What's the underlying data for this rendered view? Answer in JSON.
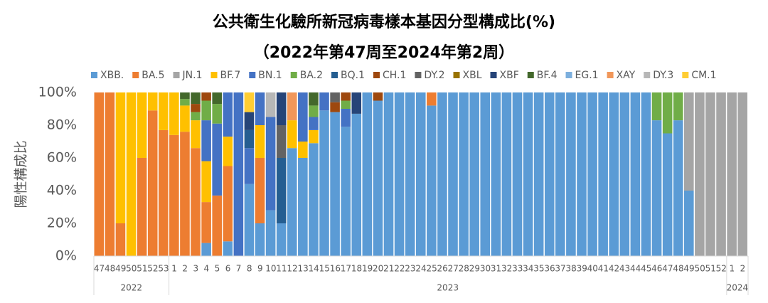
{
  "chart_data": {
    "type": "stacked_bar",
    "title": "公共衛生化驗所新冠病毒樣本基因分型構成比(%)",
    "subtitle": "（2022年第47周至2024年第2周）",
    "y_label": "陽性構成比",
    "ylim": [
      0,
      100
    ],
    "yticks": [
      {
        "value": 0,
        "label": "0%"
      },
      {
        "value": 20,
        "label": "20%"
      },
      {
        "value": 40,
        "label": "40%"
      },
      {
        "value": 60,
        "label": "60%"
      },
      {
        "value": 80,
        "label": "80%"
      },
      {
        "value": 100,
        "label": "100%"
      }
    ],
    "legend": "top",
    "categories": [
      "47",
      "48",
      "49",
      "50",
      "51",
      "52",
      "53",
      "1",
      "2",
      "3",
      "4",
      "5",
      "6",
      "7",
      "8",
      "9",
      "10",
      "11",
      "12",
      "13",
      "14",
      "15",
      "16",
      "17",
      "18",
      "19",
      "20",
      "21",
      "22",
      "23",
      "24",
      "25",
      "26",
      "27",
      "28",
      "29",
      "30",
      "31",
      "32",
      "33",
      "34",
      "35",
      "36",
      "37",
      "38",
      "39",
      "40",
      "41",
      "42",
      "43",
      "44",
      "45",
      "46",
      "47",
      "48",
      "49",
      "50",
      "51",
      "52",
      "1",
      "2"
    ],
    "x_groups": [
      {
        "label": "2022",
        "categories": 7
      },
      {
        "label": "2023",
        "categories": 52
      },
      {
        "label": "2024",
        "categories": 2
      }
    ],
    "series": [
      {
        "name": "XBB.",
        "color": "#5b9bd5",
        "values": [
          0,
          0,
          0,
          0,
          0,
          0,
          0,
          0,
          0,
          0,
          8,
          0,
          9,
          0,
          44,
          20,
          28,
          20,
          66,
          60,
          69,
          89,
          88,
          79,
          87,
          100,
          95,
          100,
          100,
          100,
          100,
          92,
          100,
          100,
          100,
          100,
          100,
          100,
          100,
          100,
          100,
          100,
          100,
          100,
          100,
          100,
          100,
          100,
          100,
          100,
          100,
          100,
          83,
          75,
          83,
          40,
          0,
          0,
          0,
          0,
          0
        ]
      },
      {
        "name": "BA.5",
        "color": "#ed7d31",
        "values": [
          100,
          100,
          20,
          0,
          60,
          89,
          77,
          74,
          76,
          66,
          25,
          37,
          46,
          0,
          0,
          40,
          0,
          0,
          0,
          0,
          0,
          0,
          0,
          0,
          0,
          0,
          0,
          0,
          0,
          0,
          0,
          8,
          0,
          0,
          0,
          0,
          0,
          0,
          0,
          0,
          0,
          0,
          0,
          0,
          0,
          0,
          0,
          0,
          0,
          0,
          0,
          0,
          0,
          0,
          0,
          0,
          0,
          0,
          0,
          0,
          0
        ]
      },
      {
        "name": "JN.1",
        "color": "#a5a5a5",
        "values": [
          0,
          0,
          0,
          0,
          0,
          0,
          0,
          0,
          0,
          0,
          0,
          0,
          0,
          0,
          0,
          0,
          0,
          0,
          0,
          0,
          0,
          0,
          0,
          0,
          0,
          0,
          0,
          0,
          0,
          0,
          0,
          0,
          0,
          0,
          0,
          0,
          0,
          0,
          0,
          0,
          0,
          0,
          0,
          0,
          0,
          0,
          0,
          0,
          0,
          0,
          0,
          0,
          0,
          0,
          0,
          60,
          100,
          100,
          100,
          100,
          100
        ]
      },
      {
        "name": "BF.7",
        "color": "#ffc000",
        "values": [
          0,
          0,
          80,
          100,
          40,
          11,
          23,
          26,
          16,
          17,
          25,
          0,
          18,
          0,
          0,
          20,
          0,
          0,
          17,
          10,
          8,
          0,
          0,
          0,
          0,
          0,
          0,
          0,
          0,
          0,
          0,
          0,
          0,
          0,
          0,
          0,
          0,
          0,
          0,
          0,
          0,
          0,
          0,
          0,
          0,
          0,
          0,
          0,
          0,
          0,
          0,
          0,
          0,
          0,
          0,
          0,
          0,
          0,
          0,
          0,
          0
        ]
      },
      {
        "name": "BN.1",
        "color": "#4472c4",
        "values": [
          0,
          0,
          0,
          0,
          0,
          0,
          0,
          0,
          0,
          0,
          25,
          44,
          27,
          100,
          22,
          20,
          57,
          0,
          0,
          30,
          8,
          11,
          0,
          11,
          0,
          0,
          0,
          0,
          0,
          0,
          0,
          0,
          0,
          0,
          0,
          0,
          0,
          0,
          0,
          0,
          0,
          0,
          0,
          0,
          0,
          0,
          0,
          0,
          0,
          0,
          0,
          0,
          0,
          0,
          0,
          0,
          0,
          0,
          0,
          0,
          0
        ]
      },
      {
        "name": "BA.2",
        "color": "#70ad47",
        "values": [
          0,
          0,
          0,
          0,
          0,
          0,
          0,
          0,
          4,
          5,
          12,
          12,
          0,
          0,
          0,
          0,
          0,
          0,
          0,
          0,
          7,
          0,
          0,
          5,
          0,
          0,
          0,
          0,
          0,
          0,
          0,
          0,
          0,
          0,
          0,
          0,
          0,
          0,
          0,
          0,
          0,
          0,
          0,
          0,
          0,
          0,
          0,
          0,
          0,
          0,
          0,
          0,
          17,
          25,
          17,
          0,
          0,
          0,
          0,
          0,
          0
        ]
      },
      {
        "name": "BQ.1",
        "color": "#255e91",
        "values": [
          0,
          0,
          0,
          0,
          0,
          0,
          0,
          0,
          0,
          0,
          0,
          0,
          0,
          0,
          11,
          0,
          0,
          40,
          0,
          0,
          0,
          0,
          0,
          0,
          0,
          0,
          0,
          0,
          0,
          0,
          0,
          0,
          0,
          0,
          0,
          0,
          0,
          0,
          0,
          0,
          0,
          0,
          0,
          0,
          0,
          0,
          0,
          0,
          0,
          0,
          0,
          0,
          0,
          0,
          0,
          0,
          0,
          0,
          0,
          0,
          0
        ]
      },
      {
        "name": "CH.1",
        "color": "#9e480e",
        "values": [
          0,
          0,
          0,
          0,
          0,
          0,
          0,
          0,
          0,
          5,
          5,
          0,
          0,
          0,
          0,
          0,
          0,
          0,
          0,
          0,
          0,
          0,
          6,
          5,
          0,
          0,
          5,
          0,
          0,
          0,
          0,
          0,
          0,
          0,
          0,
          0,
          0,
          0,
          0,
          0,
          0,
          0,
          0,
          0,
          0,
          0,
          0,
          0,
          0,
          0,
          0,
          0,
          0,
          0,
          0,
          0,
          0,
          0,
          0,
          0,
          0
        ]
      },
      {
        "name": "DY.2",
        "color": "#636363",
        "values": [
          0,
          0,
          0,
          0,
          0,
          0,
          0,
          0,
          0,
          0,
          0,
          0,
          0,
          0,
          0,
          0,
          0,
          20,
          0,
          0,
          0,
          0,
          6,
          0,
          0,
          0,
          0,
          0,
          0,
          0,
          0,
          0,
          0,
          0,
          0,
          0,
          0,
          0,
          0,
          0,
          0,
          0,
          0,
          0,
          0,
          0,
          0,
          0,
          0,
          0,
          0,
          0,
          0,
          0,
          0,
          0,
          0,
          0,
          0,
          0,
          0
        ]
      },
      {
        "name": "XBL",
        "color": "#997300",
        "values": [
          0,
          0,
          0,
          0,
          0,
          0,
          0,
          0,
          0,
          0,
          0,
          0,
          0,
          0,
          0,
          0,
          0,
          0,
          0,
          0,
          0,
          0,
          0,
          0,
          0,
          0,
          0,
          0,
          0,
          0,
          0,
          0,
          0,
          0,
          0,
          0,
          0,
          0,
          0,
          0,
          0,
          0,
          0,
          0,
          0,
          0,
          0,
          0,
          0,
          0,
          0,
          0,
          0,
          0,
          0,
          0,
          0,
          0,
          0,
          0,
          0
        ]
      },
      {
        "name": "XBF",
        "color": "#264478",
        "values": [
          0,
          0,
          0,
          0,
          0,
          0,
          0,
          0,
          0,
          0,
          0,
          0,
          0,
          0,
          11,
          0,
          0,
          20,
          0,
          0,
          0,
          0,
          0,
          0,
          13,
          0,
          0,
          0,
          0,
          0,
          0,
          0,
          0,
          0,
          0,
          0,
          0,
          0,
          0,
          0,
          0,
          0,
          0,
          0,
          0,
          0,
          0,
          0,
          0,
          0,
          0,
          0,
          0,
          0,
          0,
          0,
          0,
          0,
          0,
          0,
          0
        ]
      },
      {
        "name": "BF.4",
        "color": "#43682b",
        "values": [
          0,
          0,
          0,
          0,
          0,
          0,
          0,
          0,
          4,
          7,
          0,
          7,
          0,
          0,
          0,
          0,
          0,
          0,
          0,
          0,
          8,
          0,
          0,
          0,
          0,
          0,
          0,
          0,
          0,
          0,
          0,
          0,
          0,
          0,
          0,
          0,
          0,
          0,
          0,
          0,
          0,
          0,
          0,
          0,
          0,
          0,
          0,
          0,
          0,
          0,
          0,
          0,
          0,
          0,
          0,
          0,
          0,
          0,
          0,
          0,
          0
        ]
      },
      {
        "name": "EG.1",
        "color": "#7cafdd",
        "values": [
          0,
          0,
          0,
          0,
          0,
          0,
          0,
          0,
          0,
          0,
          0,
          0,
          0,
          0,
          0,
          0,
          0,
          0,
          0,
          0,
          0,
          0,
          0,
          0,
          0,
          0,
          0,
          0,
          0,
          0,
          0,
          0,
          0,
          0,
          0,
          0,
          0,
          0,
          0,
          0,
          0,
          0,
          0,
          0,
          0,
          0,
          0,
          0,
          0,
          0,
          0,
          0,
          0,
          0,
          0,
          0,
          0,
          0,
          0,
          0,
          0
        ]
      },
      {
        "name": "XAY",
        "color": "#f1975a",
        "values": [
          0,
          0,
          0,
          0,
          0,
          0,
          0,
          0,
          0,
          0,
          0,
          0,
          0,
          0,
          0,
          0,
          0,
          0,
          17,
          0,
          0,
          0,
          0,
          0,
          0,
          0,
          0,
          0,
          0,
          0,
          0,
          0,
          0,
          0,
          0,
          0,
          0,
          0,
          0,
          0,
          0,
          0,
          0,
          0,
          0,
          0,
          0,
          0,
          0,
          0,
          0,
          0,
          0,
          0,
          0,
          0,
          0,
          0,
          0,
          0,
          0
        ]
      },
      {
        "name": "DY.3",
        "color": "#b7b7b7",
        "values": [
          0,
          0,
          0,
          0,
          0,
          0,
          0,
          0,
          0,
          0,
          0,
          0,
          0,
          0,
          0,
          0,
          15,
          0,
          0,
          0,
          0,
          0,
          0,
          0,
          0,
          0,
          0,
          0,
          0,
          0,
          0,
          0,
          0,
          0,
          0,
          0,
          0,
          0,
          0,
          0,
          0,
          0,
          0,
          0,
          0,
          0,
          0,
          0,
          0,
          0,
          0,
          0,
          0,
          0,
          0,
          0,
          0,
          0,
          0,
          0,
          0
        ]
      },
      {
        "name": "CM.1",
        "color": "#ffcd33",
        "values": [
          0,
          0,
          0,
          0,
          0,
          0,
          0,
          0,
          0,
          0,
          0,
          0,
          0,
          0,
          12,
          0,
          0,
          0,
          0,
          0,
          0,
          0,
          0,
          0,
          0,
          0,
          0,
          0,
          0,
          0,
          0,
          0,
          0,
          0,
          0,
          0,
          0,
          0,
          0,
          0,
          0,
          0,
          0,
          0,
          0,
          0,
          0,
          0,
          0,
          0,
          0,
          0,
          0,
          0,
          0,
          0,
          0,
          0,
          0,
          0,
          0
        ]
      }
    ]
  }
}
